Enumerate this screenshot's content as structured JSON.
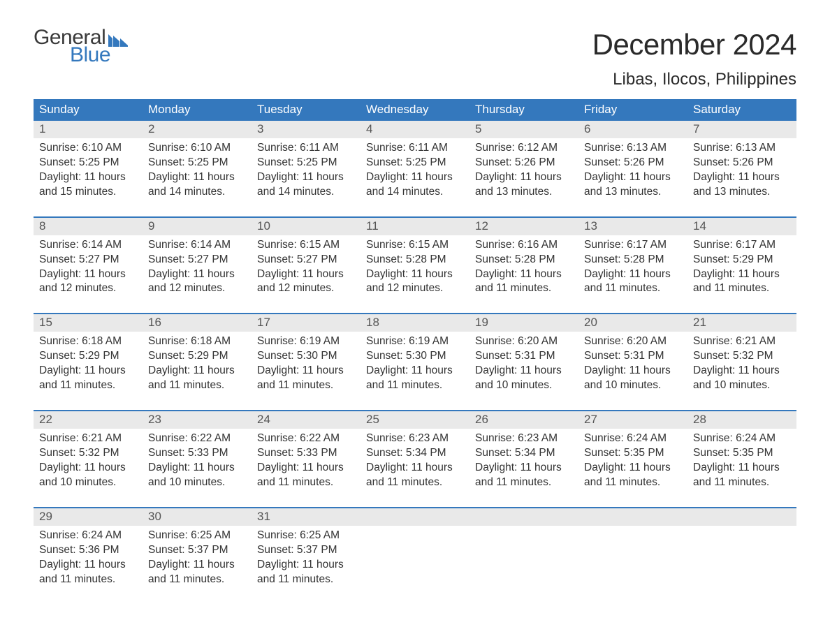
{
  "logo": {
    "word1": "General",
    "word2": "Blue",
    "text_color_1": "#3a3a3a",
    "text_color_2": "#3478bd",
    "flag_fill": "#3478bd"
  },
  "title": "December 2024",
  "location": "Libas, Ilocos, Philippines",
  "colors": {
    "header_bg": "#3478bd",
    "header_text": "#ffffff",
    "daynum_bg": "#e9e9e9",
    "daynum_text": "#555555",
    "body_text": "#333333",
    "rule": "#3478bd",
    "page_bg": "#ffffff"
  },
  "typography": {
    "title_fontsize": 42,
    "location_fontsize": 24,
    "weekday_fontsize": 17,
    "daynum_fontsize": 17,
    "cell_fontsize": 15.5
  },
  "weekdays": [
    "Sunday",
    "Monday",
    "Tuesday",
    "Wednesday",
    "Thursday",
    "Friday",
    "Saturday"
  ],
  "weeks": [
    {
      "nums": [
        "1",
        "2",
        "3",
        "4",
        "5",
        "6",
        "7"
      ],
      "cells": [
        {
          "sunrise": "Sunrise: 6:10 AM",
          "sunset": "Sunset: 5:25 PM",
          "day1": "Daylight: 11 hours",
          "day2": "and 15 minutes."
        },
        {
          "sunrise": "Sunrise: 6:10 AM",
          "sunset": "Sunset: 5:25 PM",
          "day1": "Daylight: 11 hours",
          "day2": "and 14 minutes."
        },
        {
          "sunrise": "Sunrise: 6:11 AM",
          "sunset": "Sunset: 5:25 PM",
          "day1": "Daylight: 11 hours",
          "day2": "and 14 minutes."
        },
        {
          "sunrise": "Sunrise: 6:11 AM",
          "sunset": "Sunset: 5:25 PM",
          "day1": "Daylight: 11 hours",
          "day2": "and 14 minutes."
        },
        {
          "sunrise": "Sunrise: 6:12 AM",
          "sunset": "Sunset: 5:26 PM",
          "day1": "Daylight: 11 hours",
          "day2": "and 13 minutes."
        },
        {
          "sunrise": "Sunrise: 6:13 AM",
          "sunset": "Sunset: 5:26 PM",
          "day1": "Daylight: 11 hours",
          "day2": "and 13 minutes."
        },
        {
          "sunrise": "Sunrise: 6:13 AM",
          "sunset": "Sunset: 5:26 PM",
          "day1": "Daylight: 11 hours",
          "day2": "and 13 minutes."
        }
      ]
    },
    {
      "nums": [
        "8",
        "9",
        "10",
        "11",
        "12",
        "13",
        "14"
      ],
      "cells": [
        {
          "sunrise": "Sunrise: 6:14 AM",
          "sunset": "Sunset: 5:27 PM",
          "day1": "Daylight: 11 hours",
          "day2": "and 12 minutes."
        },
        {
          "sunrise": "Sunrise: 6:14 AM",
          "sunset": "Sunset: 5:27 PM",
          "day1": "Daylight: 11 hours",
          "day2": "and 12 minutes."
        },
        {
          "sunrise": "Sunrise: 6:15 AM",
          "sunset": "Sunset: 5:27 PM",
          "day1": "Daylight: 11 hours",
          "day2": "and 12 minutes."
        },
        {
          "sunrise": "Sunrise: 6:15 AM",
          "sunset": "Sunset: 5:28 PM",
          "day1": "Daylight: 11 hours",
          "day2": "and 12 minutes."
        },
        {
          "sunrise": "Sunrise: 6:16 AM",
          "sunset": "Sunset: 5:28 PM",
          "day1": "Daylight: 11 hours",
          "day2": "and 11 minutes."
        },
        {
          "sunrise": "Sunrise: 6:17 AM",
          "sunset": "Sunset: 5:28 PM",
          "day1": "Daylight: 11 hours",
          "day2": "and 11 minutes."
        },
        {
          "sunrise": "Sunrise: 6:17 AM",
          "sunset": "Sunset: 5:29 PM",
          "day1": "Daylight: 11 hours",
          "day2": "and 11 minutes."
        }
      ]
    },
    {
      "nums": [
        "15",
        "16",
        "17",
        "18",
        "19",
        "20",
        "21"
      ],
      "cells": [
        {
          "sunrise": "Sunrise: 6:18 AM",
          "sunset": "Sunset: 5:29 PM",
          "day1": "Daylight: 11 hours",
          "day2": "and 11 minutes."
        },
        {
          "sunrise": "Sunrise: 6:18 AM",
          "sunset": "Sunset: 5:29 PM",
          "day1": "Daylight: 11 hours",
          "day2": "and 11 minutes."
        },
        {
          "sunrise": "Sunrise: 6:19 AM",
          "sunset": "Sunset: 5:30 PM",
          "day1": "Daylight: 11 hours",
          "day2": "and 11 minutes."
        },
        {
          "sunrise": "Sunrise: 6:19 AM",
          "sunset": "Sunset: 5:30 PM",
          "day1": "Daylight: 11 hours",
          "day2": "and 11 minutes."
        },
        {
          "sunrise": "Sunrise: 6:20 AM",
          "sunset": "Sunset: 5:31 PM",
          "day1": "Daylight: 11 hours",
          "day2": "and 10 minutes."
        },
        {
          "sunrise": "Sunrise: 6:20 AM",
          "sunset": "Sunset: 5:31 PM",
          "day1": "Daylight: 11 hours",
          "day2": "and 10 minutes."
        },
        {
          "sunrise": "Sunrise: 6:21 AM",
          "sunset": "Sunset: 5:32 PM",
          "day1": "Daylight: 11 hours",
          "day2": "and 10 minutes."
        }
      ]
    },
    {
      "nums": [
        "22",
        "23",
        "24",
        "25",
        "26",
        "27",
        "28"
      ],
      "cells": [
        {
          "sunrise": "Sunrise: 6:21 AM",
          "sunset": "Sunset: 5:32 PM",
          "day1": "Daylight: 11 hours",
          "day2": "and 10 minutes."
        },
        {
          "sunrise": "Sunrise: 6:22 AM",
          "sunset": "Sunset: 5:33 PM",
          "day1": "Daylight: 11 hours",
          "day2": "and 10 minutes."
        },
        {
          "sunrise": "Sunrise: 6:22 AM",
          "sunset": "Sunset: 5:33 PM",
          "day1": "Daylight: 11 hours",
          "day2": "and 11 minutes."
        },
        {
          "sunrise": "Sunrise: 6:23 AM",
          "sunset": "Sunset: 5:34 PM",
          "day1": "Daylight: 11 hours",
          "day2": "and 11 minutes."
        },
        {
          "sunrise": "Sunrise: 6:23 AM",
          "sunset": "Sunset: 5:34 PM",
          "day1": "Daylight: 11 hours",
          "day2": "and 11 minutes."
        },
        {
          "sunrise": "Sunrise: 6:24 AM",
          "sunset": "Sunset: 5:35 PM",
          "day1": "Daylight: 11 hours",
          "day2": "and 11 minutes."
        },
        {
          "sunrise": "Sunrise: 6:24 AM",
          "sunset": "Sunset: 5:35 PM",
          "day1": "Daylight: 11 hours",
          "day2": "and 11 minutes."
        }
      ]
    },
    {
      "nums": [
        "29",
        "30",
        "31",
        "",
        "",
        "",
        ""
      ],
      "cells": [
        {
          "sunrise": "Sunrise: 6:24 AM",
          "sunset": "Sunset: 5:36 PM",
          "day1": "Daylight: 11 hours",
          "day2": "and 11 minutes."
        },
        {
          "sunrise": "Sunrise: 6:25 AM",
          "sunset": "Sunset: 5:37 PM",
          "day1": "Daylight: 11 hours",
          "day2": "and 11 minutes."
        },
        {
          "sunrise": "Sunrise: 6:25 AM",
          "sunset": "Sunset: 5:37 PM",
          "day1": "Daylight: 11 hours",
          "day2": "and 11 minutes."
        },
        {
          "sunrise": "",
          "sunset": "",
          "day1": "",
          "day2": ""
        },
        {
          "sunrise": "",
          "sunset": "",
          "day1": "",
          "day2": ""
        },
        {
          "sunrise": "",
          "sunset": "",
          "day1": "",
          "day2": ""
        },
        {
          "sunrise": "",
          "sunset": "",
          "day1": "",
          "day2": ""
        }
      ]
    }
  ]
}
